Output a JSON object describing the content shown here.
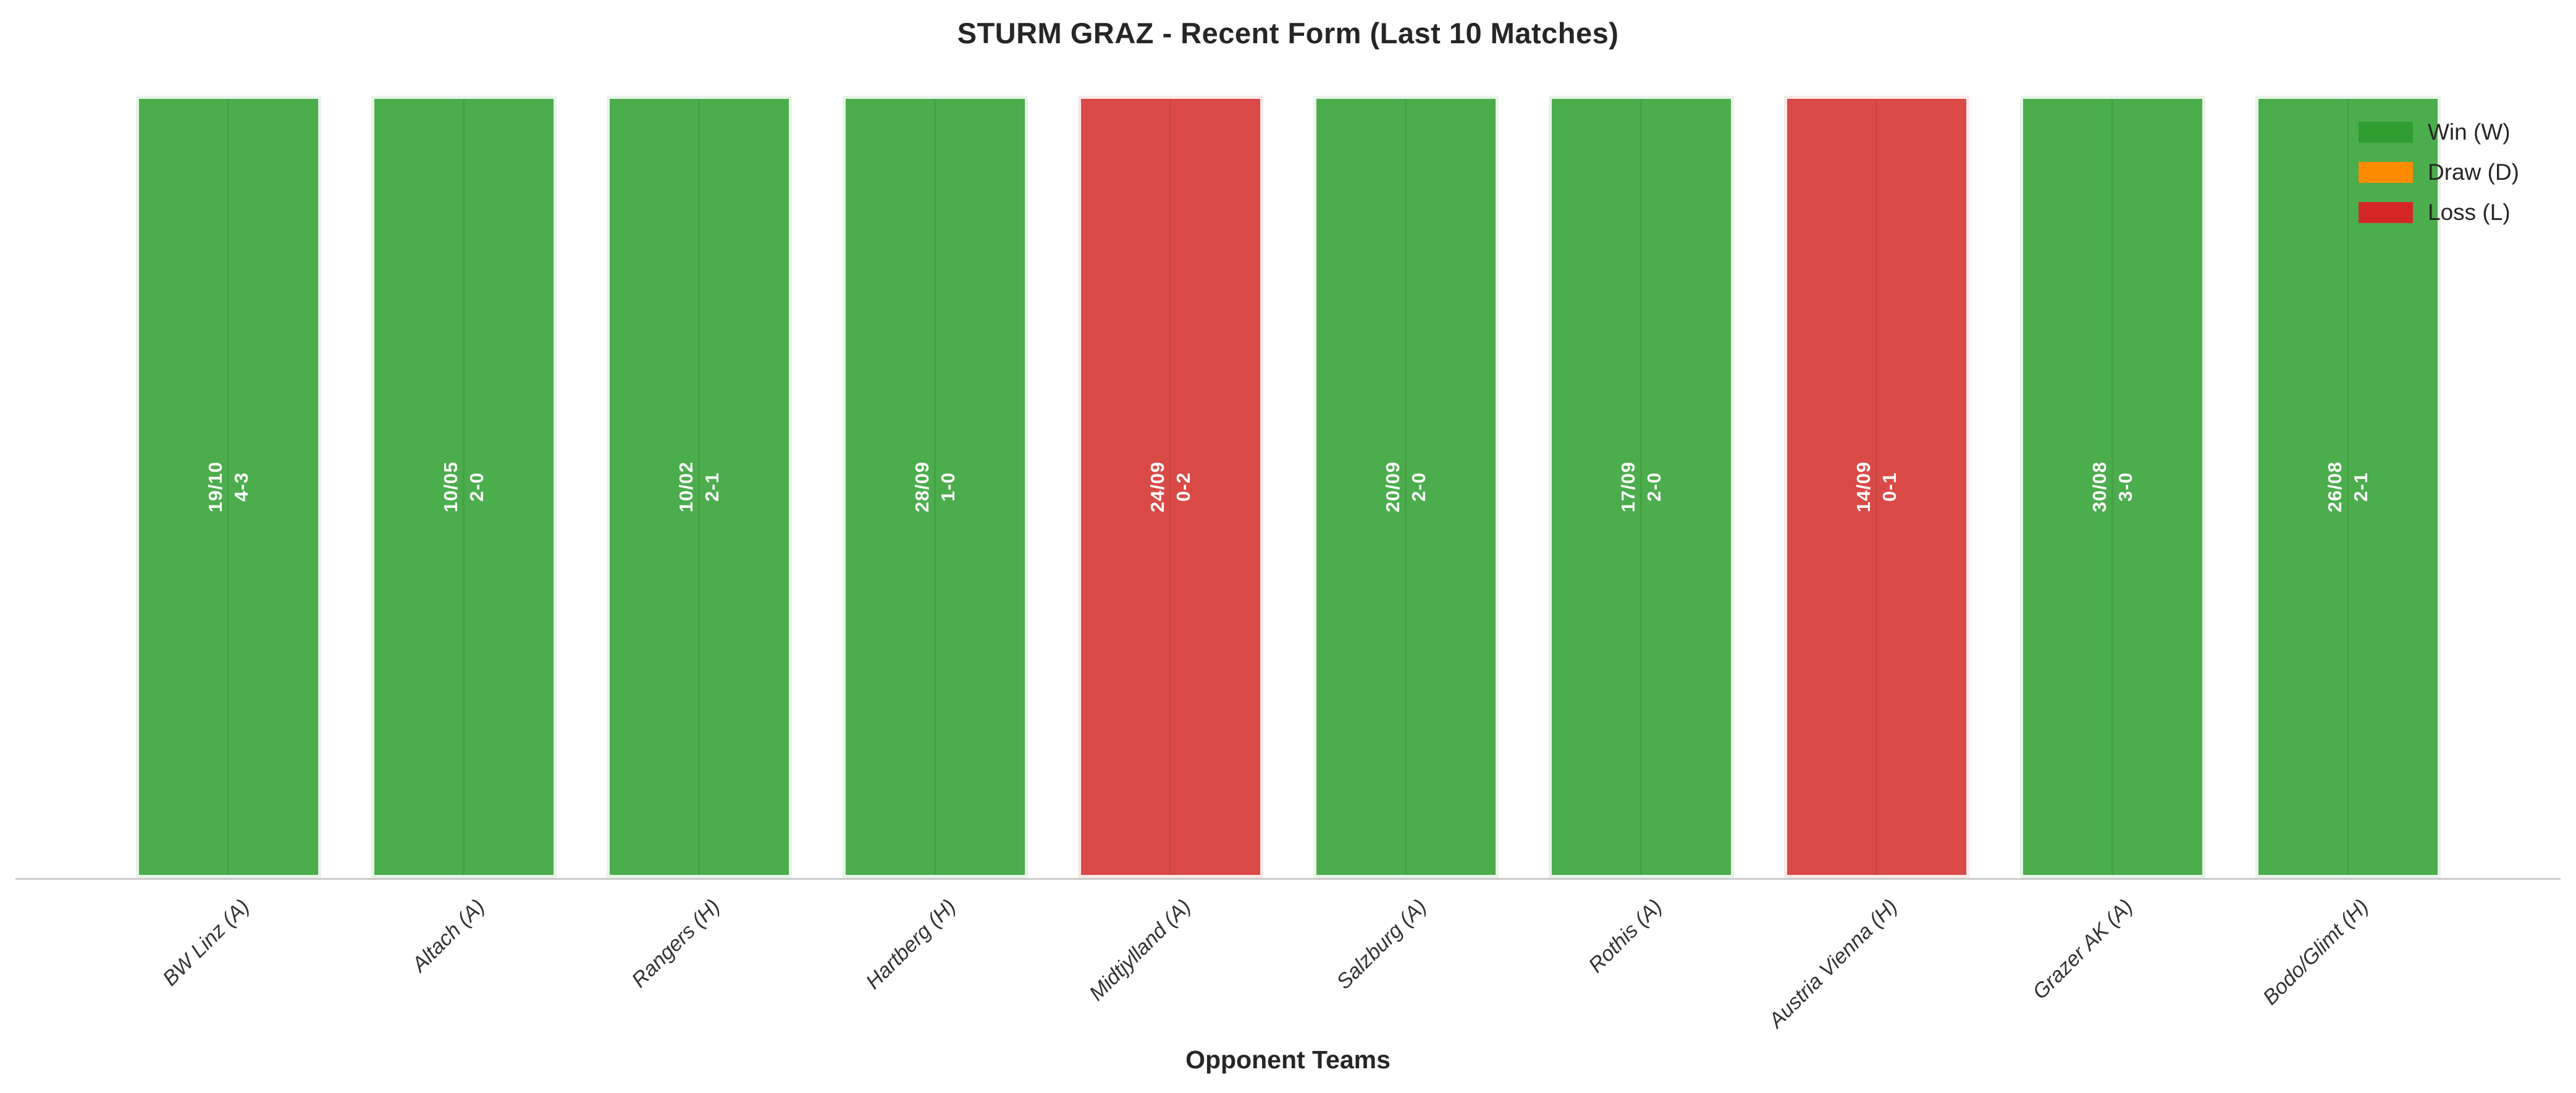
{
  "title": "STURM GRAZ - Recent Form (Last 10 Matches)",
  "x_axis": {
    "label": "Opponent Teams"
  },
  "legend": {
    "position": "upper-right",
    "items": [
      {
        "label": "Win (W)",
        "color": "#2e9e30"
      },
      {
        "label": "Draw (D)",
        "color": "#ff8c00"
      },
      {
        "label": "Loss (L)",
        "color": "#d62728"
      }
    ]
  },
  "matches": [
    {
      "opponent": "BW Linz (A)",
      "date": "19/10",
      "score": "4-3",
      "result": "W"
    },
    {
      "opponent": "Altach (A)",
      "date": "10/05",
      "score": "2-0",
      "result": "W"
    },
    {
      "opponent": "Rangers (H)",
      "date": "10/02",
      "score": "2-1",
      "result": "W"
    },
    {
      "opponent": "Hartberg (H)",
      "date": "28/09",
      "score": "1-0",
      "result": "W"
    },
    {
      "opponent": "Midtjylland (A)",
      "date": "24/09",
      "score": "0-2",
      "result": "L"
    },
    {
      "opponent": "Salzburg (A)",
      "date": "20/09",
      "score": "2-0",
      "result": "W"
    },
    {
      "opponent": "Rothis (A)",
      "date": "17/09",
      "score": "2-0",
      "result": "W"
    },
    {
      "opponent": "Austria Vienna (H)",
      "date": "14/09",
      "score": "0-1",
      "result": "L"
    },
    {
      "opponent": "Grazer AK (A)",
      "date": "30/08",
      "score": "3-0",
      "result": "W"
    },
    {
      "opponent": "Bodo/Glimt (H)",
      "date": "26/08",
      "score": "2-1",
      "result": "W"
    }
  ],
  "chart_data": {
    "type": "bar",
    "title": "STURM GRAZ - Recent Form (Last 10 Matches)",
    "xlabel": "Opponent Teams",
    "ylabel": "",
    "categories": [
      "BW Linz (A)",
      "Altach (A)",
      "Rangers (H)",
      "Hartberg (H)",
      "Midtjylland (A)",
      "Salzburg (A)",
      "Rothis (A)",
      "Austria Vienna (H)",
      "Grazer AK (A)",
      "Bodo/Glimt (H)"
    ],
    "values": [
      1,
      1,
      1,
      1,
      1,
      1,
      1,
      1,
      1,
      1
    ],
    "bar_annotations": [
      "19/10\n4-3",
      "10/05\n2-0",
      "10/02\n2-1",
      "28/09\n1-0",
      "24/09\n0-2",
      "20/09\n2-0",
      "17/09\n2-0",
      "14/09\n0-1",
      "30/08\n3-0",
      "26/08\n2-1"
    ],
    "bar_results": [
      "W",
      "W",
      "W",
      "W",
      "L",
      "W",
      "W",
      "L",
      "W",
      "W"
    ],
    "legend_entries": [
      "Win (W)",
      "Draw (D)",
      "Loss (L)"
    ],
    "legend_position": "upper right",
    "grid": "faint vertical gridline at each category center",
    "y_axis_visible": false
  },
  "colors": {
    "win_bar_fill": "#4bad4c",
    "win_bar_edge": "#e8f4e8",
    "loss_bar_fill": "#d94a47",
    "loss_bar_edge": "#f8e9e8",
    "legend_win": "#2e9e30",
    "legend_draw": "#ff8c00",
    "legend_loss": "#d62728",
    "axis_line": "#cccccc",
    "title_text": "#262626",
    "tick_text": "#333333",
    "bar_label_text": "#ffffff"
  }
}
